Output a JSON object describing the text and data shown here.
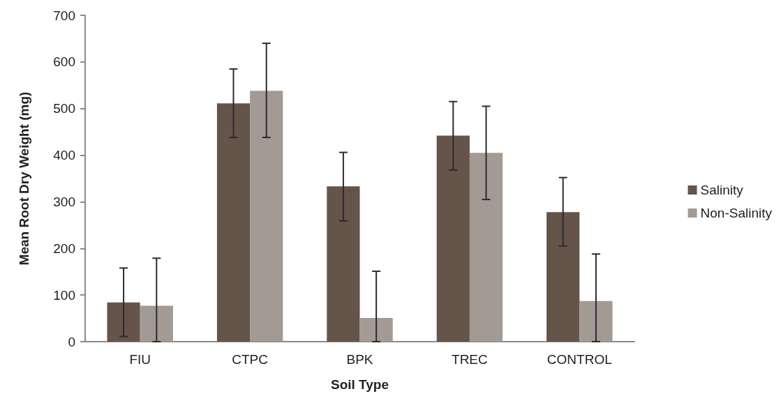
{
  "chart_data": {
    "type": "bar",
    "xlabel": "Soil Type",
    "ylabel": "Mean Root Dry Weight (mg)",
    "categories": [
      "FIU",
      "CTPC",
      "BPK",
      "TREC",
      "CONTROL"
    ],
    "series": [
      {
        "name": "Salinity",
        "color": "#655449",
        "values": [
          84,
          511,
          333,
          442,
          278
        ],
        "errors": [
          [
            11,
            158
          ],
          [
            438,
            585
          ],
          [
            259,
            406
          ],
          [
            368,
            515
          ],
          [
            205,
            352
          ]
        ]
      },
      {
        "name": "Non-Salinity",
        "color": "#a39a93",
        "values": [
          77,
          538,
          51,
          405,
          87
        ],
        "errors": [
          [
            0,
            179
          ],
          [
            438,
            640
          ],
          [
            0,
            151
          ],
          [
            305,
            505
          ],
          [
            0,
            188
          ]
        ]
      }
    ],
    "ylim": [
      0,
      700
    ],
    "yticks": [
      0,
      100,
      200,
      300,
      400,
      500,
      600,
      700
    ],
    "grid": false,
    "legend": "right"
  }
}
